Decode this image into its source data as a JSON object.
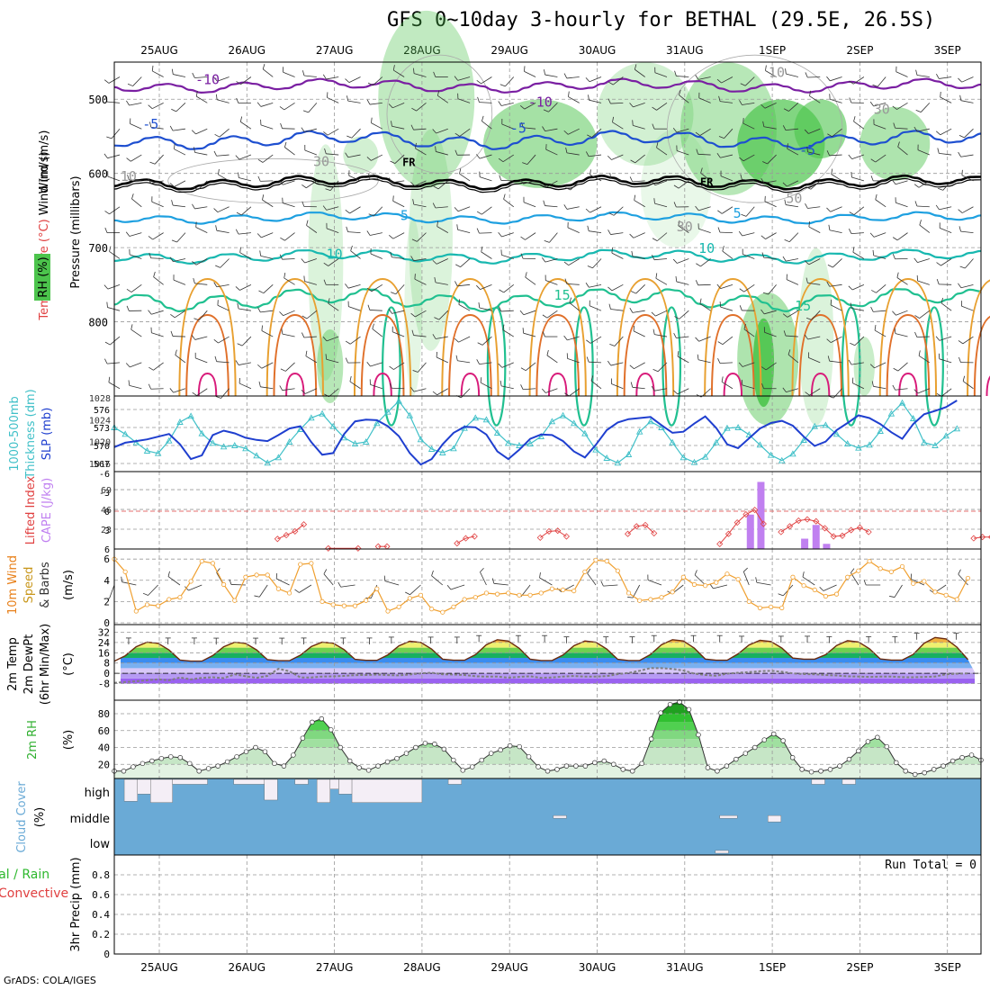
{
  "title": "GFS 0~10day 3-hourly for BETHAL (29.5E, 26.5S)",
  "footer": "GrADS: COLA/IGES",
  "colors": {
    "rh_green": "#4cc44c",
    "temp_purple": "#7a1fa2",
    "temp_blue": "#1e4fd0",
    "temp_lightblue": "#1ea0e0",
    "temp_teal": "#18b8b0",
    "temp_green": "#20c090",
    "temp_orange": "#e8a030",
    "freezing": "#000000",
    "thickness": "#40c0c8",
    "slp": "#1f3fcf",
    "lifted": "#e04040",
    "cape": "#c080f0",
    "wind10": "#f0a030",
    "dewpt": "#808080",
    "rh2m": "#30b030",
    "cloud": "#6aaad6",
    "cloud_gap": "#f4eef6"
  },
  "chart_data": [
    {
      "type": "contour",
      "panel": "upper-air",
      "ylabel_parts": [
        "Wind (m/s)",
        "Temperature (°C)",
        "Pressure (millibars)",
        "RH (%)"
      ],
      "y_ticks": [
        500,
        600,
        700,
        800
      ],
      "ylim": [
        450,
        900
      ],
      "x_dates": [
        "25AUG",
        "26AUG",
        "27AUG",
        "28AUG",
        "29AUG",
        "30AUG",
        "31AUG",
        "1SEP",
        "2SEP",
        "3SEP"
      ],
      "isotherm_labels": [
        {
          "text": "-10",
          "day": 0.55,
          "p": 480
        },
        {
          "text": "-10",
          "day": 4.35,
          "p": 510
        },
        {
          "text": "-5",
          "day": -0.1,
          "p": 540
        },
        {
          "text": "-5",
          "day": 4.1,
          "p": 545
        },
        {
          "text": "-5",
          "day": 7.4,
          "p": 575
        },
        {
          "text": "FR",
          "day": 2.85,
          "p": 590
        },
        {
          "text": "FR",
          "day": 6.25,
          "p": 617
        },
        {
          "text": "5",
          "day": 2.8,
          "p": 663
        },
        {
          "text": "5",
          "day": 6.6,
          "p": 660
        },
        {
          "text": "10",
          "day": 2.0,
          "p": 715
        },
        {
          "text": "10",
          "day": 6.25,
          "p": 707
        },
        {
          "text": "15",
          "day": 4.6,
          "p": 770
        },
        {
          "text": "15",
          "day": 7.35,
          "p": 785
        },
        {
          "text": "30",
          "day": 1.85,
          "p": 590
        },
        {
          "text": "10",
          "day": -0.35,
          "p": 610
        },
        {
          "text": "10",
          "day": 7.05,
          "p": 470
        },
        {
          "text": "30",
          "day": 8.25,
          "p": 520
        },
        {
          "text": "50",
          "day": 7.25,
          "p": 640
        },
        {
          "text": "30",
          "day": 6.0,
          "p": 678
        }
      ]
    },
    {
      "type": "line",
      "panel": "thickness-slp",
      "ylabel_left": "1000-500mb Thickness (dm)",
      "ylabel_right": "SLP (mb)",
      "left_ticks": [
        567,
        570,
        573,
        576
      ],
      "right_ticks": [
        1016,
        1020,
        1024,
        1028
      ],
      "series": [
        {
          "name": "Thickness",
          "units": "dm",
          "values": [
            573.0,
            571.9,
            570.5,
            569.1,
            568.7,
            570.8,
            573.9,
            574.9,
            572.0,
            570.4,
            569.8,
            570.0,
            569.5,
            568.3,
            567.1,
            568.0,
            570.6,
            572.7,
            574.6,
            575.3,
            573.2,
            571.3,
            570.3,
            570.6,
            573.7,
            575.6,
            577.4,
            575.0,
            571.0,
            569.4,
            568.8,
            569.5,
            572.9,
            574.6,
            574.3,
            572.1,
            570.4,
            570.0,
            570.3,
            571.5,
            574.0,
            575.0,
            573.7,
            572.0,
            569.3,
            567.9,
            567.1,
            568.5,
            572.3,
            574.0,
            573.0,
            570.5,
            568.0,
            567.2,
            568.1,
            570.5,
            572.9,
            573.0,
            571.8,
            570.1,
            568.4,
            567.5,
            568.6,
            570.9,
            573.2,
            573.4,
            571.9,
            570.3,
            569.6,
            570.1,
            572.4,
            575.3,
            577.1,
            574.5,
            570.5,
            570.0,
            571.6,
            572.8
          ]
        },
        {
          "name": "SLP",
          "units": "mb",
          "values": [
            1019.0,
            1019.8,
            1020.1,
            1020.4,
            1020.9,
            1021.4,
            1019.5,
            1016.8,
            1017.5,
            1021.2,
            1022.0,
            1021.5,
            1020.7,
            1020.3,
            1020.1,
            1021.2,
            1022.4,
            1022.8,
            1019.9,
            1017.6,
            1017.9,
            1021.4,
            1023.7,
            1024.0,
            1023.9,
            1022.8,
            1021.0,
            1017.9,
            1015.8,
            1016.8,
            1019.5,
            1021.6,
            1022.7,
            1022.6,
            1021.3,
            1018.2,
            1016.8,
            1018.5,
            1020.5,
            1021.3,
            1021.2,
            1020.1,
            1018.2,
            1017.1,
            1019.4,
            1022.1,
            1023.5,
            1024.1,
            1024.3,
            1024.5,
            1023.0,
            1021.6,
            1021.8,
            1023.3,
            1024.6,
            1022.5,
            1019.5,
            1018.8,
            1020.6,
            1022.4,
            1023.4,
            1023.8,
            1022.9,
            1020.9,
            1019.2,
            1020.0,
            1022.1,
            1023.4,
            1024.8,
            1024.3,
            1023.2,
            1021.7,
            1020.5,
            1023.2,
            1025.0,
            1025.6,
            1026.3,
            1027.5
          ]
        }
      ]
    },
    {
      "type": "bar+line",
      "panel": "lifted-cape",
      "ylabel_left": "Lifted Index",
      "ylabel_right": "CAPE (J/kg)",
      "left_ticks": [
        6,
        3,
        0,
        -3,
        -6
      ],
      "right_ticks": [
        23,
        46,
        69
      ],
      "lifted_index": {
        "segments": [
          {
            "day": [
              1.35,
              1.45,
              1.55,
              1.65
            ],
            "values": [
              4.4,
              3.8,
              3.2,
              2.1
            ]
          },
          {
            "day": [
              2.5,
              2.6
            ],
            "values": [
              5.6,
              5.6
            ]
          },
          {
            "day": [
              3.4,
              3.5,
              3.6
            ],
            "values": [
              5.1,
              4.3,
              4.0
            ]
          },
          {
            "day": [
              4.35,
              4.45,
              4.55,
              4.65
            ],
            "values": [
              4.2,
              3.2,
              3.1,
              4.0
            ]
          },
          {
            "day": [
              5.35,
              5.45,
              5.55,
              5.65
            ],
            "values": [
              3.6,
              2.4,
              2.2,
              3.5
            ]
          },
          {
            "day": [
              6.4,
              6.5,
              6.6,
              6.7,
              6.8,
              6.9
            ],
            "values": [
              5.2,
              3.6,
              1.8,
              0.5,
              -0.2,
              2.0
            ]
          },
          {
            "day": [
              7.1,
              7.2,
              7.3,
              7.4,
              7.5,
              7.6,
              7.7,
              7.8,
              7.9,
              8.0,
              8.1
            ],
            "values": [
              3.3,
              2.4,
              1.5,
              1.3,
              1.6,
              2.7,
              4.0,
              3.9,
              3.0,
              2.6,
              3.3
            ]
          },
          {
            "day": [
              9.3,
              9.4,
              9.5,
              9.6
            ],
            "values": [
              4.3,
              4.1,
              4.1,
              3.5
            ]
          },
          {
            "day": [
              1.93,
              2.27
            ],
            "values": [
              5.9,
              5.9
            ]
          }
        ]
      },
      "cape": {
        "day": [
          6.75,
          6.87,
          7.37,
          7.5,
          7.62
        ],
        "values": [
          40,
          78,
          12,
          28,
          6
        ]
      }
    },
    {
      "type": "line",
      "panel": "wind10m",
      "ylabel": "10m Wind Speed & Barbs (m/s)",
      "y_ticks": [
        0,
        2,
        4,
        6
      ],
      "series": [
        {
          "name": "10m Wind Speed",
          "units": "m/s",
          "values": [
            6.0,
            4.8,
            1.1,
            1.7,
            1.6,
            2.2,
            2.4,
            3.9,
            5.8,
            5.6,
            3.6,
            2.1,
            4.3,
            4.5,
            4.5,
            3.2,
            2.8,
            5.5,
            5.6,
            2.0,
            1.7,
            1.6,
            1.6,
            2.1,
            3.2,
            1.1,
            1.5,
            2.3,
            2.6,
            1.3,
            1.0,
            1.5,
            2.2,
            2.4,
            2.8,
            2.7,
            2.8,
            2.6,
            2.6,
            2.8,
            3.2,
            3.1,
            3.0,
            4.8,
            5.9,
            5.8,
            4.9,
            2.8,
            2.1,
            2.2,
            2.4,
            2.9,
            4.3,
            3.6,
            3.5,
            3.8,
            4.6,
            4.1,
            2.0,
            1.4,
            1.5,
            1.4,
            4.3,
            3.5,
            3.1,
            2.5,
            2.7,
            4.3,
            4.9,
            5.8,
            5.1,
            4.8,
            5.3,
            3.7,
            3.9,
            2.9,
            2.6,
            2.2,
            4.2
          ]
        }
      ]
    },
    {
      "type": "area+line",
      "panel": "temp2m",
      "ylabel": "2m Temp 2m DewPt (6hr Min/Max) (°C)",
      "y_ticks": [
        -8,
        0,
        8,
        16,
        24,
        32
      ],
      "temp_peaks": [
        24.5,
        24.4,
        24.5,
        25.2,
        26.4,
        25.4,
        26.4,
        25.9,
        25.6,
        28.2
      ],
      "temp_mins": [
        9.5,
        9.8,
        10.1,
        10.2,
        10.0,
        10.0,
        10.2,
        11.0,
        10.3,
        9.6
      ],
      "dewpoint": {
        "name": "2m DewPt",
        "values": [
          -7.5,
          -6.8,
          -6.2,
          -5.4,
          -4.7,
          -5.5,
          -3.3,
          -4.8,
          -3.6,
          -3.1,
          -3.8,
          -0.8,
          -2.3,
          -3.5,
          -2.0,
          3.5,
          1.6,
          -3.2,
          -3.2,
          -2.5,
          -2.4,
          -2.0,
          -1.4,
          -1.3,
          -1.0,
          -1.4,
          -1.6,
          -1.0,
          -0.1,
          0.4,
          -0.8,
          -1.0,
          -1.3,
          -2.3,
          -2.6,
          -2.6,
          -3.4,
          -2.8,
          -2.3,
          -3.6,
          -3.2,
          -2.5,
          -2.1,
          -2.6,
          -2.5,
          -2.2,
          -0.6,
          0.3,
          2.0,
          4.1,
          4.0,
          3.4,
          2.2,
          -0.3,
          -1.3,
          -1.9,
          -0.3,
          0.4,
          0.9,
          1.6,
          2.0,
          1.2,
          -0.1,
          -0.6,
          -0.8,
          -1.3,
          -1.7,
          -2.4,
          -2.5,
          -2.9,
          -2.6,
          -2.6,
          -3.0,
          -3.1,
          -2.9,
          -2.5,
          -0.8,
          -0.3,
          -0.1
        ]
      }
    },
    {
      "type": "line",
      "panel": "rh2m",
      "ylabel": "2m RH (%)",
      "y_ticks": [
        20,
        40,
        60,
        80
      ],
      "series": [
        {
          "name": "2m RH",
          "units": "%",
          "values": [
            12,
            12,
            17,
            21,
            24,
            27,
            29,
            28,
            21,
            12,
            15,
            18,
            23,
            29,
            35,
            40,
            35,
            21,
            18,
            31,
            51,
            70,
            74,
            61,
            40,
            24,
            16,
            13,
            18,
            23,
            27,
            33,
            40,
            45,
            44,
            38,
            25,
            13,
            17,
            25,
            33,
            37,
            42,
            41,
            29,
            17,
            12,
            14,
            18,
            18,
            18,
            22,
            24,
            20,
            14,
            12,
            21,
            50,
            81,
            91,
            94,
            85,
            55,
            16,
            12,
            18,
            26,
            33,
            40,
            49,
            56,
            48,
            28,
            14,
            11,
            12,
            14,
            18,
            26,
            36,
            47,
            52,
            41,
            22,
            12,
            8,
            10,
            14,
            18,
            24,
            28,
            31,
            25
          ]
        }
      ]
    },
    {
      "type": "bar",
      "panel": "cloud-cover",
      "ylabel": "Cloud Cover (%)",
      "levels": [
        "high",
        "middle",
        "low"
      ],
      "gaps_high": [
        {
          "start": 0.1,
          "end": 0.25,
          "depth": 0.9
        },
        {
          "start": 0.25,
          "end": 0.4,
          "depth": 0.6
        },
        {
          "start": 0.4,
          "end": 0.65,
          "depth": 0.95
        },
        {
          "start": 0.65,
          "end": 1.05,
          "depth": 0.2
        },
        {
          "start": 1.35,
          "end": 1.7,
          "depth": 0.2
        },
        {
          "start": 1.7,
          "end": 1.85,
          "depth": 0.85
        },
        {
          "start": 2.05,
          "end": 2.2,
          "depth": 0.2
        },
        {
          "start": 2.3,
          "end": 2.45,
          "depth": 0.95
        },
        {
          "start": 2.45,
          "end": 2.55,
          "depth": 0.4
        },
        {
          "start": 2.55,
          "end": 2.7,
          "depth": 0.6
        },
        {
          "start": 2.7,
          "end": 3.5,
          "depth": 0.95
        },
        {
          "start": 3.8,
          "end": 3.95,
          "depth": 0.2
        },
        {
          "start": 7.95,
          "end": 8.1,
          "depth": 0.2
        },
        {
          "start": 8.3,
          "end": 8.45,
          "depth": 0.2
        }
      ],
      "gaps_middle": [
        {
          "start": 5.0,
          "end": 5.15,
          "depth": 0.2
        },
        {
          "start": 6.9,
          "end": 7.1,
          "depth": 0.2
        },
        {
          "start": 7.45,
          "end": 7.6,
          "depth": 0.5
        }
      ],
      "gaps_low": [
        {
          "start": 6.85,
          "end": 7.0,
          "depth": 0.2
        }
      ]
    },
    {
      "type": "bar",
      "panel": "precip",
      "ylabel": "3hr Precip (mm)",
      "legend_left": [
        "Total / Rain",
        "Convective"
      ],
      "run_total_label": "Run Total = 0",
      "y_ticks": [
        0,
        0.2,
        0.4,
        0.6,
        0.8
      ],
      "ylim": [
        0,
        1
      ],
      "values": []
    }
  ]
}
